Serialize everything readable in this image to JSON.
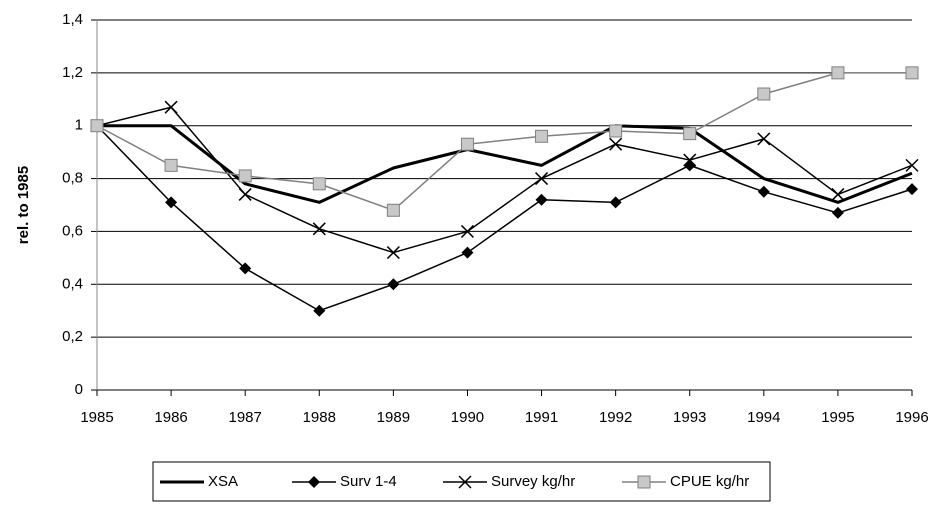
{
  "chart_data": {
    "type": "line",
    "y_label": "rel. to 1985",
    "x": [
      1985,
      1986,
      1987,
      1988,
      1989,
      1990,
      1991,
      1992,
      1993,
      1994,
      1995,
      1996
    ],
    "xlim": [
      1985,
      1996
    ],
    "xticks": [
      1985,
      1986,
      1987,
      1988,
      1989,
      1990,
      1991,
      1992,
      1993,
      1994,
      1995,
      1996
    ],
    "ylim": [
      0,
      1.4
    ],
    "yticks": [
      0,
      {
        "value": 0.2,
        "label": "0,2"
      },
      {
        "value": 0.4,
        "label": "0,4"
      },
      {
        "value": 0.6,
        "label": "0,6"
      },
      {
        "value": 0.8,
        "label": "0,8"
      },
      1,
      {
        "value": 1.2,
        "label": "1,2"
      },
      {
        "value": 1.4,
        "label": "1,4"
      }
    ],
    "grid": true,
    "legend": "bottom",
    "series": [
      {
        "name": "XSA",
        "color": "#000000",
        "line_width": 3,
        "values": [
          1.0,
          1.0,
          0.78,
          0.71,
          0.84,
          0.91,
          0.85,
          1.0,
          0.99,
          0.8,
          0.71,
          0.82
        ]
      },
      {
        "name": "Surv 1-4",
        "color": "#000000",
        "line_width": 1.5,
        "marker": "diamond",
        "values": [
          1.0,
          0.71,
          0.46,
          0.3,
          0.4,
          0.52,
          0.72,
          0.71,
          0.85,
          0.75,
          0.67,
          0.76
        ]
      },
      {
        "name": "Survey kg/hr",
        "color": "#000000",
        "line_width": 1.5,
        "marker": "x",
        "values": [
          1.0,
          1.07,
          0.74,
          0.61,
          0.52,
          0.6,
          0.8,
          0.93,
          0.87,
          0.95,
          0.74,
          0.85
        ]
      },
      {
        "name": "CPUE kg/hr",
        "color": "#808080",
        "line_width": 1.5,
        "marker": "square",
        "values": [
          1.0,
          0.85,
          0.81,
          0.78,
          0.68,
          0.93,
          0.96,
          0.98,
          0.97,
          1.12,
          1.2,
          1.2
        ]
      }
    ]
  }
}
